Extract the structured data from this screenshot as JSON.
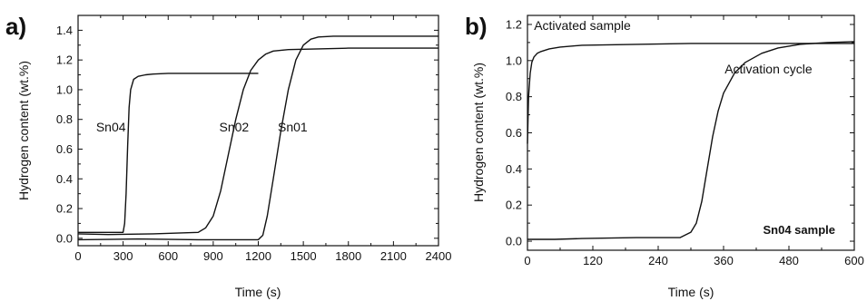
{
  "chart_data": [
    {
      "panel_letter": "a)",
      "type": "line",
      "xlabel": "Time (s)",
      "ylabel": "Hydrogen content (wt.%)",
      "xlim": [
        0,
        2400
      ],
      "ylim": [
        -0.05,
        1.5
      ],
      "xticks": [
        0,
        300,
        600,
        900,
        1200,
        1500,
        1800,
        2100,
        2400
      ],
      "yticks": [
        0.0,
        0.2,
        0.4,
        0.6,
        0.8,
        1.0,
        1.2,
        1.4
      ],
      "grid": false,
      "series": [
        {
          "name": "Sn04",
          "label_at": [
            120,
            0.72
          ],
          "x": [
            0,
            300,
            310,
            320,
            330,
            340,
            350,
            370,
            400,
            450,
            500,
            600,
            900,
            1100,
            1200
          ],
          "y": [
            0.04,
            0.04,
            0.1,
            0.3,
            0.62,
            0.88,
            1.0,
            1.07,
            1.09,
            1.1,
            1.105,
            1.11,
            1.11,
            1.11,
            1.11
          ]
        },
        {
          "name": "Sn02",
          "label_at": [
            940,
            0.72
          ],
          "x": [
            0,
            200,
            500,
            800,
            850,
            900,
            950,
            1000,
            1050,
            1100,
            1150,
            1200,
            1250,
            1300,
            1400,
            1600,
            1800,
            2400
          ],
          "y": [
            0.03,
            0.025,
            0.03,
            0.04,
            0.07,
            0.15,
            0.32,
            0.56,
            0.8,
            1.0,
            1.13,
            1.2,
            1.24,
            1.26,
            1.27,
            1.275,
            1.28,
            1.28
          ]
        },
        {
          "name": "Sn01",
          "label_at": [
            1330,
            0.72
          ],
          "x": [
            0,
            400,
            800,
            1000,
            1200,
            1230,
            1260,
            1300,
            1350,
            1400,
            1450,
            1500,
            1550,
            1600,
            1700,
            1900,
            2400
          ],
          "y": [
            -0.01,
            -0.005,
            -0.01,
            -0.01,
            -0.01,
            0.02,
            0.15,
            0.4,
            0.72,
            1.0,
            1.2,
            1.3,
            1.34,
            1.355,
            1.36,
            1.36,
            1.36
          ]
        }
      ]
    },
    {
      "panel_letter": "b)",
      "type": "line",
      "xlabel": "Time (s)",
      "ylabel": "Hydrogen content (wt.%)",
      "xlim": [
        0,
        600
      ],
      "ylim": [
        -0.05,
        1.25
      ],
      "xticks": [
        0,
        120,
        240,
        360,
        480,
        600
      ],
      "yticks": [
        0.0,
        0.2,
        0.4,
        0.6,
        0.8,
        1.0,
        1.2
      ],
      "grid": false,
      "annotation": "Sn04 sample",
      "series": [
        {
          "name": "Activated sample",
          "label_at": [
            12,
            1.17
          ],
          "x": [
            0,
            2,
            5,
            8,
            12,
            18,
            25,
            40,
            60,
            100,
            200,
            300,
            400,
            500,
            600
          ],
          "y": [
            0.54,
            0.8,
            0.93,
            0.99,
            1.02,
            1.04,
            1.05,
            1.065,
            1.075,
            1.085,
            1.09,
            1.095,
            1.095,
            1.095,
            1.095
          ]
        },
        {
          "name": "Activation cycle",
          "label_at": [
            362,
            0.93
          ],
          "x": [
            0,
            50,
            100,
            200,
            280,
            300,
            310,
            320,
            330,
            340,
            350,
            360,
            380,
            400,
            430,
            460,
            500,
            550,
            600
          ],
          "y": [
            0.01,
            0.01,
            0.015,
            0.02,
            0.02,
            0.05,
            0.1,
            0.22,
            0.4,
            0.58,
            0.72,
            0.82,
            0.93,
            0.99,
            1.04,
            1.07,
            1.09,
            1.1,
            1.105
          ]
        }
      ]
    }
  ]
}
